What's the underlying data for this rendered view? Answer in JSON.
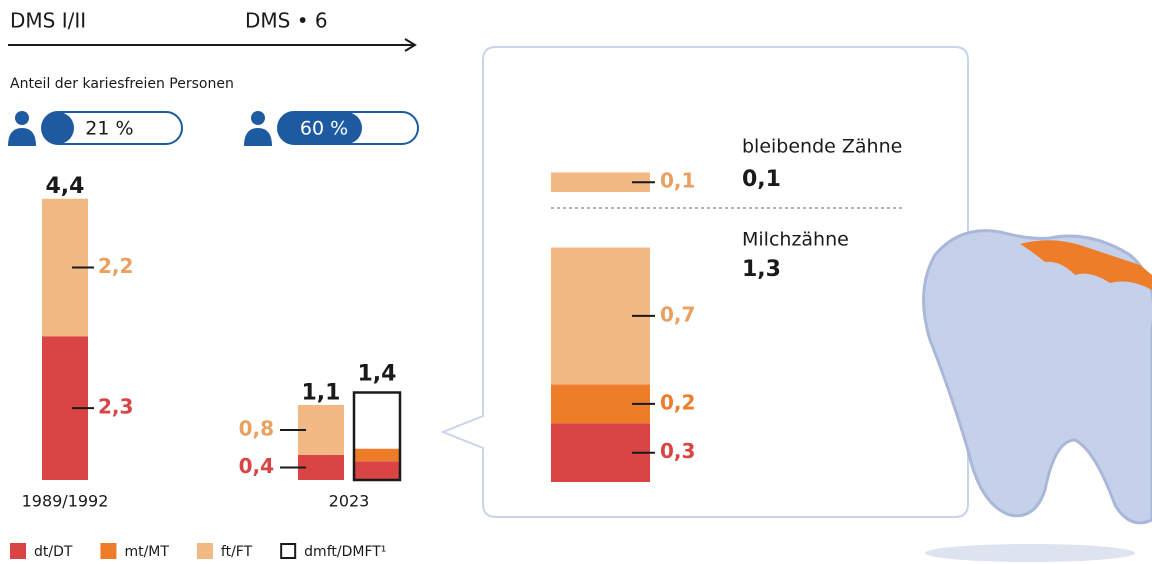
{
  "header": {
    "left": "DMS I/II",
    "right": "DMS • 6"
  },
  "subtitle": "Anteil der kariesfreien Personen",
  "cariesfree": {
    "values": [
      21,
      60
    ],
    "value_labels": [
      "21 %",
      "60 %"
    ],
    "xlim": [
      0,
      100
    ],
    "color": "#1e5aa0"
  },
  "chart_data": {
    "type": "bar",
    "stacked": true,
    "ylim": [
      0,
      4.4
    ],
    "series": [
      {
        "name": "dt/DT",
        "color": "#d94545"
      },
      {
        "name": "mt/MT",
        "color": "#ee7d2a"
      },
      {
        "name": "ft/FT",
        "color": "#f2b985"
      },
      {
        "name": "dmft/DMFT¹",
        "color": "#1a1a1a",
        "outline": true
      }
    ],
    "bars": [
      {
        "label": "1989/1992",
        "total": 4.4,
        "total_label": "4,4",
        "segments": [
          {
            "series": "dt/DT",
            "value": 2.3,
            "value_label": "2,3"
          },
          {
            "series": "ft/FT",
            "value": 2.2,
            "value_label": "2,2"
          }
        ]
      },
      {
        "total": 1.1,
        "total_label": "1,1",
        "segments": [
          {
            "series": "dt/DT",
            "value": 0.4,
            "value_label": "0,4"
          },
          {
            "series": "ft/FT",
            "value": 0.8,
            "value_label": "0,8"
          }
        ]
      },
      {
        "label": "2023",
        "outline": true,
        "total": 1.4,
        "total_label": "1,4",
        "segments": [
          {
            "series": "dt/DT",
            "value": 0.3
          },
          {
            "series": "mt/MT",
            "value": 0.2
          }
        ]
      }
    ]
  },
  "detail": {
    "ylim": [
      0,
      1.3
    ],
    "groups": [
      {
        "title": "bleibende Zähne",
        "total": 0.1,
        "total_label": "0,1",
        "segments": [
          {
            "series": "ft/FT",
            "value": 0.1,
            "value_label": "0,1"
          }
        ]
      },
      {
        "title": "Milchzähne",
        "total": 1.3,
        "total_label": "1,3",
        "segments": [
          {
            "series": "dt/DT",
            "value": 0.3,
            "value_label": "0,3"
          },
          {
            "series": "mt/MT",
            "value": 0.2,
            "value_label": "0,2"
          },
          {
            "series": "ft/FT",
            "value": 0.7,
            "value_label": "0,7"
          }
        ]
      }
    ]
  }
}
